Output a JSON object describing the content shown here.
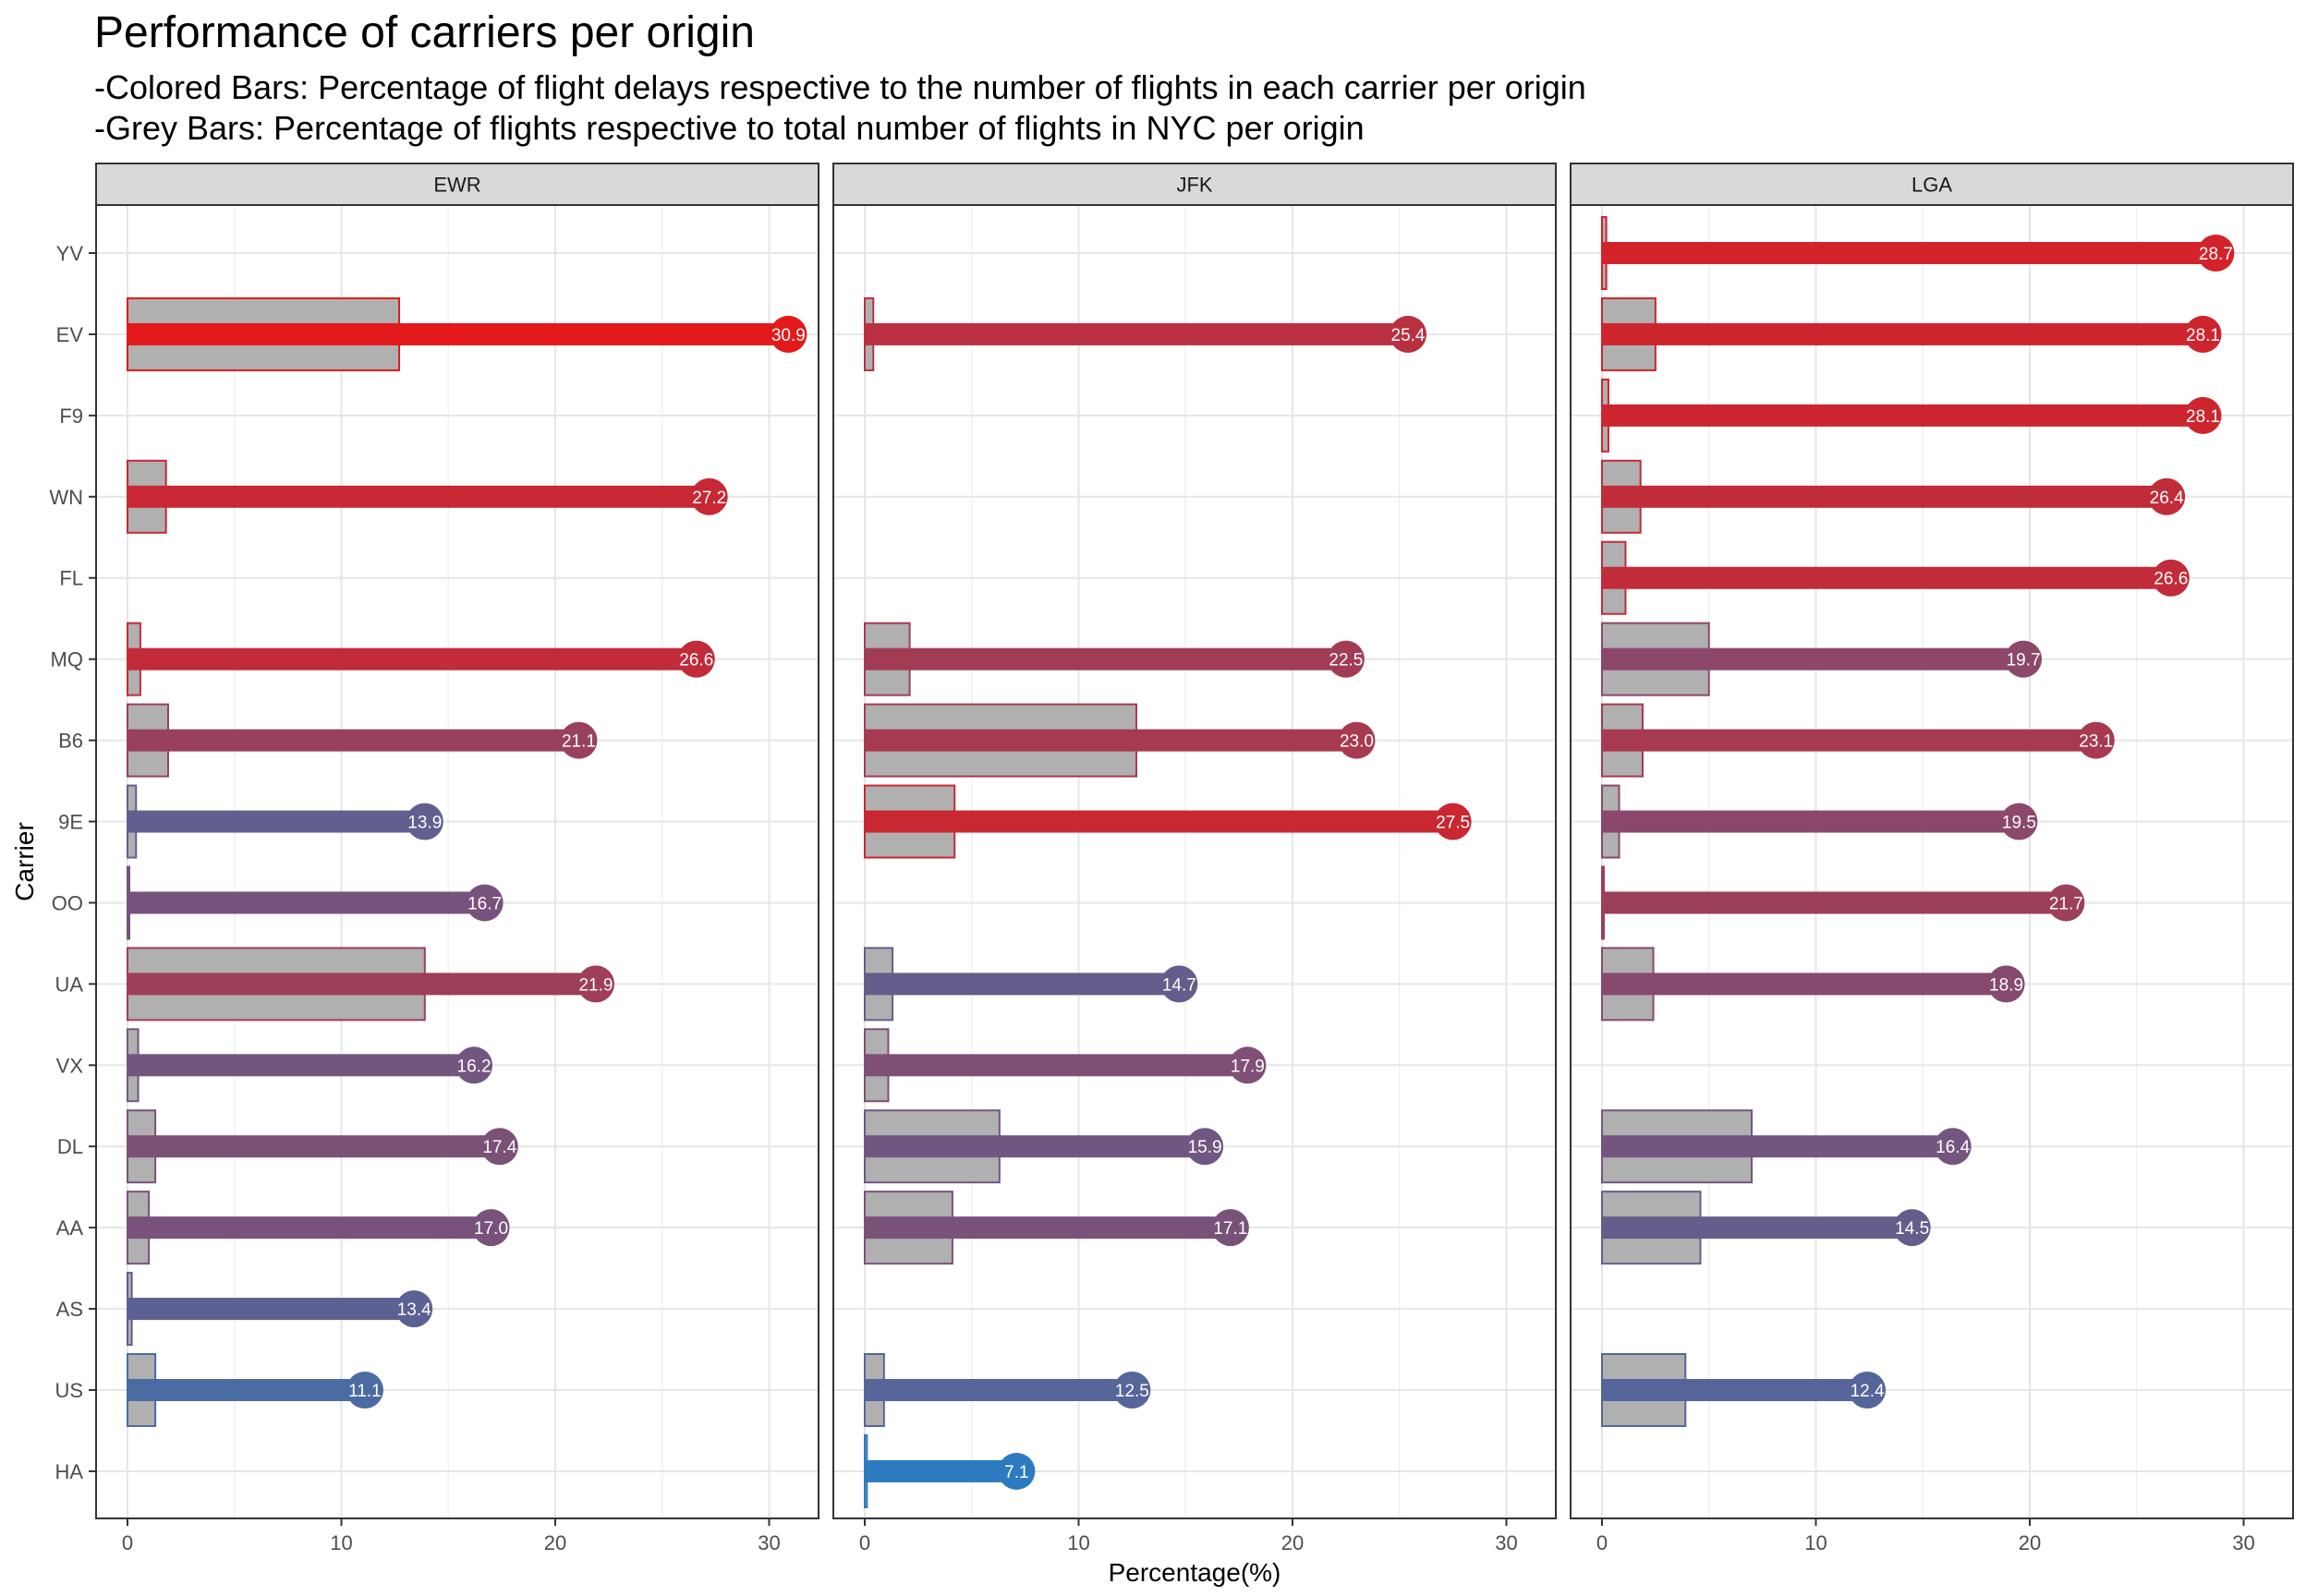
{
  "chart_data": {
    "type": "bar",
    "title": "Performance of carriers per origin",
    "subtitle_lines": [
      "-Colored Bars: Percentage of flight delays respective to the number of flights in each carrier per origin",
      "-Grey Bars: Percentage of flights respective to total number of flights in NYC per origin"
    ],
    "xlabel": "Percentage(%)",
    "ylabel": "Carrier",
    "xlim": [
      0,
      32
    ],
    "x_ticks": [
      0,
      10,
      20,
      30
    ],
    "grid": true,
    "categories": [
      "YV",
      "EV",
      "F9",
      "WN",
      "FL",
      "MQ",
      "B6",
      "9E",
      "OO",
      "UA",
      "VX",
      "DL",
      "AA",
      "AS",
      "US",
      "HA"
    ],
    "color_scale": {
      "low": 7.1,
      "high": 30.9,
      "low_color": "#2c7bbf",
      "high_color": "#e3191b"
    },
    "share_color": "#b0b0b0",
    "panels": [
      {
        "name": "EWR",
        "delay_pct": {
          "EV": 30.9,
          "WN": 27.2,
          "MQ": 26.6,
          "B6": 21.1,
          "9E": 13.9,
          "OO": 16.7,
          "UA": 21.9,
          "VX": 16.2,
          "DL": 17.4,
          "AA": 17.0,
          "AS": 13.4,
          "US": 11.1
        },
        "flight_share_pct": {
          "EV": 12.7,
          "WN": 1.8,
          "MQ": 0.6,
          "B6": 1.9,
          "9E": 0.4,
          "OO": 0.05,
          "UA": 13.9,
          "VX": 0.5,
          "DL": 1.3,
          "AA": 1.0,
          "AS": 0.2,
          "US": 1.3
        }
      },
      {
        "name": "JFK",
        "delay_pct": {
          "EV": 25.4,
          "MQ": 22.5,
          "B6": 23.0,
          "9E": 27.5,
          "UA": 14.7,
          "VX": 17.9,
          "DL": 15.9,
          "AA": 17.1,
          "US": 12.5,
          "HA": 7.1
        },
        "flight_share_pct": {
          "EV": 0.4,
          "MQ": 2.1,
          "B6": 12.7,
          "9E": 4.2,
          "UA": 1.3,
          "VX": 1.1,
          "DL": 6.3,
          "AA": 4.1,
          "US": 0.9,
          "HA": 0.1
        }
      },
      {
        "name": "LGA",
        "delay_pct": {
          "YV": 28.7,
          "EV": 28.1,
          "F9": 28.1,
          "WN": 26.4,
          "FL": 26.6,
          "MQ": 19.7,
          "B6": 23.1,
          "9E": 19.5,
          "OO": 21.7,
          "UA": 18.9,
          "DL": 16.4,
          "AA": 14.5,
          "US": 12.4
        },
        "flight_share_pct": {
          "YV": 0.2,
          "EV": 2.5,
          "F9": 0.3,
          "WN": 1.8,
          "FL": 1.1,
          "MQ": 5.0,
          "B6": 1.9,
          "9E": 0.8,
          "OO": 0.05,
          "UA": 2.4,
          "DL": 7.0,
          "AA": 4.6,
          "US": 3.9
        }
      }
    ]
  }
}
